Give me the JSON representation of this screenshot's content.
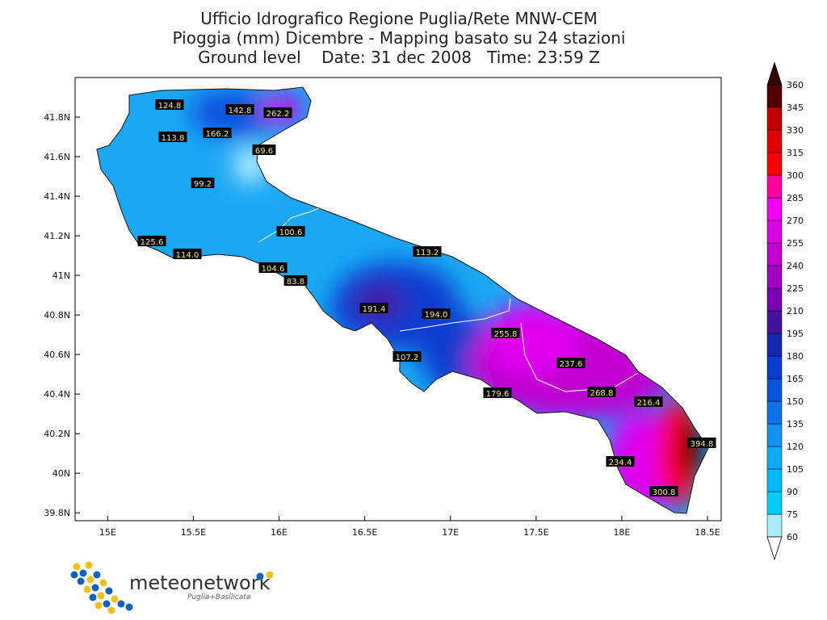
{
  "title": [
    "Ufficio Idrografico Regione Puglia/Rete MNW-CEM",
    "Pioggia (mm) Dicembre - Mapping basato su 24 stazioni",
    "Ground level    Date: 31 dec 2008   Time: 23:59 Z"
  ],
  "map": {
    "xlim": [
      14.81,
      18.58
    ],
    "ylim": [
      39.76,
      42.0
    ],
    "xticks": [
      {
        "value": 15,
        "label": "15E"
      },
      {
        "value": 15.5,
        "label": "15.5E"
      },
      {
        "value": 16,
        "label": "16E"
      },
      {
        "value": 16.5,
        "label": "16.5E"
      },
      {
        "value": 17,
        "label": "17E"
      },
      {
        "value": 17.5,
        "label": "17.5E"
      },
      {
        "value": 18,
        "label": "18E"
      },
      {
        "value": 18.5,
        "label": "18.5E"
      }
    ],
    "yticks": [
      {
        "value": 39.8,
        "label": "39.8N"
      },
      {
        "value": 40,
        "label": "40N"
      },
      {
        "value": 40.2,
        "label": "40.2N"
      },
      {
        "value": 40.4,
        "label": "40.4N"
      },
      {
        "value": 40.6,
        "label": "40.6N"
      },
      {
        "value": 40.8,
        "label": "40.8N"
      },
      {
        "value": 41,
        "label": "41N"
      },
      {
        "value": 41.2,
        "label": "41.2N"
      },
      {
        "value": 41.4,
        "label": "41.4N"
      },
      {
        "value": 41.6,
        "label": "41.6N"
      },
      {
        "value": 41.8,
        "label": "41.8N"
      }
    ],
    "stations": [
      "124.8",
      "142.8",
      "262.2",
      "166.2",
      "113.8",
      "69.6",
      "99.2",
      "100.6",
      "125.6",
      "114.0",
      "113.2",
      "104.6",
      "83.8",
      "191.4",
      "194.0",
      "255.8",
      "107.2",
      "237.6",
      "179.6",
      "268.8",
      "216.4",
      "394.8",
      "234.4",
      "300.8"
    ]
  },
  "colorbar": {
    "levels": [
      60,
      75,
      90,
      105,
      120,
      135,
      150,
      165,
      180,
      195,
      210,
      225,
      240,
      255,
      270,
      285,
      300,
      315,
      330,
      345,
      360
    ],
    "colors": [
      "#a8ecff",
      "#00ccff",
      "#00b8ff",
      "#10a8f8",
      "#1492f0",
      "#1070e8",
      "#0a52e0",
      "#0a3cd0",
      "#1428b0",
      "#4412a0",
      "#7a00b0",
      "#a000c0",
      "#c000d0",
      "#d800e0",
      "#f000f0",
      "#ff00a0",
      "#ff0000",
      "#e00000",
      "#c00000",
      "#500000"
    ]
  },
  "logo": {
    "name": "meteonetwork",
    "region": "Puglia+Basilicata"
  }
}
